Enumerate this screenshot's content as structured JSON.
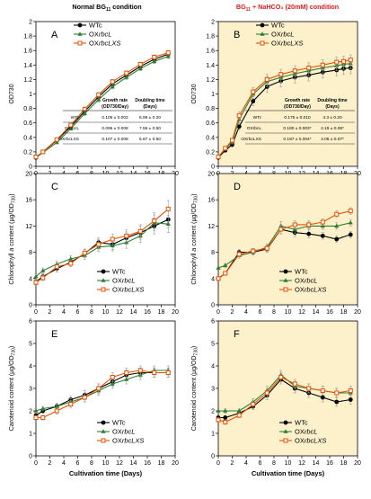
{
  "col_titles": [
    {
      "pre": "Normal BG",
      "sub": "11",
      "post": " condition",
      "color": "#000000"
    },
    {
      "pre": "BG",
      "sub": "11",
      "post": " + NaHCO₃ (20mM) condition",
      "color": "#e41a1c"
    }
  ],
  "x_label": "Cultivation time (Days)",
  "x_ticks": [
    0,
    2,
    4,
    6,
    8,
    10,
    12,
    14,
    16,
    18,
    20
  ],
  "legend_items": [
    {
      "key": "wt",
      "pre": "WTc",
      "ital": "",
      "post": ""
    },
    {
      "key": "ox1",
      "pre": "OX",
      "ital": "rbcL",
      "post": ""
    },
    {
      "key": "ox2",
      "pre": "OX",
      "ital": "rbcLXS",
      "post": ""
    }
  ],
  "colors": {
    "wt": "#000000",
    "ox1": "#2e7d32",
    "ox2": "#e65100",
    "panel_bg_right": "#fdf1cc",
    "title_right": "#e41a1c"
  },
  "row_labels": [
    {
      "pre": "OD730",
      "sub": "",
      "post": ""
    },
    {
      "pre": "Chlorophyll ",
      "ital": "a",
      "post": " content (µg/OD",
      "sub": "730",
      "end": ")"
    },
    {
      "pre": "Carotenoid content (µg/OD",
      "sub": "730",
      "end": ")"
    }
  ],
  "tables": [
    {
      "headers": [
        "Growth rate",
        "(OD730/Day)",
        "Doubling time",
        "(Days)"
      ],
      "rows": [
        [
          "WTc",
          "0.105 ± 0.002",
          "6.96 ± 0.20"
        ],
        [
          "OXrbcL",
          "0.096 ± 0.008",
          "7.56 ± 0.50"
        ],
        [
          "OXrbcLXS",
          "0.107 ± 0.008",
          "6.87 ± 0.50"
        ]
      ]
    },
    {
      "headers": [
        "Growth rate",
        "(OD730/Day)",
        "Doubling time",
        "(Days)"
      ],
      "rows": [
        [
          "WTc",
          "0.175 ± 0.010",
          "4.3 ± 0.20"
        ],
        [
          "OXrbcL",
          "0.180 ± 0.003*",
          "4.18 ± 0.06*"
        ],
        [
          "OXrbcLXS",
          "0.187 ± 0.004*",
          "4.05 ± 0.07*"
        ]
      ]
    }
  ],
  "chart_data": [
    {
      "panel": "A",
      "type": "line",
      "background": "#ffffff",
      "ylabel": "OD730",
      "ylim": [
        0,
        2
      ],
      "yticks": [
        0,
        0.2,
        0.4,
        0.6,
        0.8,
        1,
        1.2,
        1.4,
        1.6,
        1.8,
        2
      ],
      "xlim": [
        0,
        20
      ],
      "legend": "table",
      "series": [
        {
          "name": "WTc",
          "x": [
            0,
            1,
            3,
            5,
            7,
            9,
            11,
            13,
            15,
            17,
            19
          ],
          "y": [
            0.12,
            0.2,
            0.36,
            0.55,
            0.76,
            0.96,
            1.14,
            1.26,
            1.38,
            1.48,
            1.55
          ],
          "err": [
            0.01,
            0.01,
            0.02,
            0.02,
            0.03,
            0.03,
            0.03,
            0.03,
            0.03,
            0.03,
            0.03
          ]
        },
        {
          "name": "OXrbcL",
          "x": [
            0,
            1,
            3,
            5,
            7,
            9,
            11,
            13,
            15,
            17,
            19
          ],
          "y": [
            0.12,
            0.19,
            0.33,
            0.52,
            0.73,
            0.92,
            1.1,
            1.23,
            1.35,
            1.45,
            1.52
          ],
          "err": [
            0.01,
            0.01,
            0.02,
            0.02,
            0.03,
            0.03,
            0.03,
            0.03,
            0.03,
            0.03,
            0.03
          ]
        },
        {
          "name": "OXrbcLXS",
          "x": [
            0,
            1,
            3,
            5,
            7,
            9,
            11,
            13,
            15,
            17,
            19
          ],
          "y": [
            0.13,
            0.2,
            0.37,
            0.57,
            0.79,
            0.99,
            1.17,
            1.29,
            1.41,
            1.51,
            1.57
          ],
          "err": [
            0.01,
            0.01,
            0.02,
            0.02,
            0.03,
            0.03,
            0.03,
            0.03,
            0.03,
            0.03,
            0.03
          ]
        }
      ]
    },
    {
      "panel": "B",
      "type": "line",
      "background": "#fdf1cc",
      "ylabel": "OD730",
      "ylim": [
        0,
        2
      ],
      "yticks": [
        0,
        0.2,
        0.4,
        0.6,
        0.8,
        1,
        1.2,
        1.4,
        1.6,
        1.8,
        2
      ],
      "xlim": [
        0,
        20
      ],
      "legend": "table",
      "series": [
        {
          "name": "WTc",
          "x": [
            0,
            1,
            2,
            3,
            5,
            7,
            9,
            11,
            13,
            15,
            17,
            18,
            19
          ],
          "y": [
            0.12,
            0.22,
            0.3,
            0.55,
            0.9,
            1.1,
            1.18,
            1.23,
            1.26,
            1.3,
            1.33,
            1.35,
            1.36
          ],
          "err": [
            0.01,
            0.02,
            0.03,
            0.05,
            0.06,
            0.08,
            0.08,
            0.08,
            0.08,
            0.08,
            0.08,
            0.08,
            0.08
          ]
        },
        {
          "name": "OXrbcL",
          "x": [
            0,
            1,
            2,
            3,
            5,
            7,
            9,
            11,
            13,
            15,
            17,
            18,
            19
          ],
          "y": [
            0.13,
            0.24,
            0.34,
            0.65,
            1.0,
            1.17,
            1.23,
            1.28,
            1.32,
            1.36,
            1.39,
            1.41,
            1.42
          ],
          "err": [
            0.01,
            0.02,
            0.03,
            0.05,
            0.06,
            0.07,
            0.07,
            0.07,
            0.07,
            0.07,
            0.07,
            0.07,
            0.07
          ]
        },
        {
          "name": "OXrbcLXS",
          "x": [
            0,
            1,
            2,
            3,
            5,
            7,
            9,
            11,
            13,
            15,
            17,
            18,
            19
          ],
          "y": [
            0.13,
            0.25,
            0.36,
            0.7,
            1.03,
            1.2,
            1.27,
            1.32,
            1.36,
            1.4,
            1.44,
            1.45,
            1.47
          ],
          "err": [
            0.01,
            0.02,
            0.03,
            0.05,
            0.06,
            0.07,
            0.07,
            0.07,
            0.07,
            0.07,
            0.07,
            0.07,
            0.07
          ]
        }
      ]
    },
    {
      "panel": "C",
      "type": "line",
      "background": "#ffffff",
      "ylabel": "Chlorophyll a content (µg/OD730)",
      "ylim": [
        0,
        20
      ],
      "yticks": [
        0,
        4,
        8,
        12,
        16,
        20
      ],
      "xlim": [
        0,
        20
      ],
      "legend": "bottom-right",
      "series": [
        {
          "name": "WTc",
          "x": [
            0,
            1,
            3,
            5,
            7,
            9,
            11,
            13,
            15,
            17,
            19
          ],
          "y": [
            3.5,
            4.3,
            5.5,
            6.5,
            7.8,
            9.5,
            9.2,
            10.2,
            11.0,
            12.0,
            13.0
          ],
          "err": [
            0.4,
            0.4,
            0.5,
            0.5,
            0.6,
            0.7,
            0.8,
            0.9,
            1.0,
            1.2,
            1.3
          ]
        },
        {
          "name": "OXrbcL",
          "x": [
            0,
            1,
            3,
            5,
            7,
            9,
            11,
            13,
            15,
            17,
            19
          ],
          "y": [
            4.3,
            5.2,
            6.2,
            7.0,
            7.5,
            8.8,
            9.0,
            9.5,
            10.5,
            12.5,
            12.3
          ],
          "err": [
            0.4,
            0.4,
            0.5,
            0.5,
            0.6,
            0.7,
            0.8,
            0.9,
            1.0,
            1.2,
            1.3
          ]
        },
        {
          "name": "OXrbcLXS",
          "x": [
            0,
            1,
            3,
            5,
            7,
            9,
            11,
            13,
            15,
            17,
            19
          ],
          "y": [
            3.4,
            4.1,
            5.8,
            6.3,
            7.9,
            9.2,
            10.0,
            10.5,
            11.2,
            12.8,
            14.6
          ],
          "err": [
            0.4,
            0.4,
            0.5,
            0.5,
            0.6,
            0.7,
            0.8,
            0.9,
            1.0,
            1.2,
            1.3
          ]
        }
      ]
    },
    {
      "panel": "D",
      "type": "line",
      "background": "#fdf1cc",
      "ylabel": "Chlorophyll a content (µg/OD730)",
      "ylim": [
        0,
        20
      ],
      "yticks": [
        0,
        4,
        8,
        12,
        16,
        20
      ],
      "xlim": [
        0,
        20
      ],
      "legend": "bottom-right",
      "series": [
        {
          "name": "WTc",
          "x": [
            0,
            1,
            3,
            5,
            7,
            9,
            11,
            13,
            15,
            17,
            19
          ],
          "y": [
            4.0,
            4.8,
            8.0,
            8.0,
            8.5,
            11.5,
            11.0,
            10.8,
            10.5,
            10.0,
            10.7
          ],
          "err": [
            0.3,
            0.3,
            0.4,
            0.4,
            0.5,
            0.7,
            0.6,
            0.6,
            0.5,
            0.5,
            0.5
          ]
        },
        {
          "name": "OXrbcL",
          "x": [
            0,
            1,
            3,
            5,
            7,
            9,
            11,
            13,
            15,
            17,
            19
          ],
          "y": [
            5.6,
            6.0,
            7.5,
            8.0,
            8.8,
            12.0,
            11.5,
            12.0,
            12.0,
            12.0,
            12.5
          ],
          "err": [
            0.3,
            0.3,
            0.4,
            0.4,
            0.5,
            0.7,
            0.6,
            0.6,
            0.5,
            0.5,
            0.5
          ]
        },
        {
          "name": "OXrbcLXS",
          "x": [
            0,
            1,
            3,
            5,
            7,
            9,
            11,
            13,
            15,
            17,
            19
          ],
          "y": [
            4.0,
            4.8,
            7.7,
            8.2,
            8.6,
            11.5,
            12.2,
            12.2,
            12.6,
            13.8,
            14.3
          ],
          "err": [
            0.3,
            0.3,
            0.4,
            0.4,
            0.5,
            0.7,
            0.6,
            0.6,
            0.5,
            0.5,
            0.5
          ]
        }
      ]
    },
    {
      "panel": "E",
      "type": "line",
      "background": "#ffffff",
      "ylabel": "Carotenoid content (µg/OD730)",
      "ylim": [
        0,
        6
      ],
      "yticks": [
        0,
        1,
        2,
        3,
        4,
        5,
        6
      ],
      "xlim": [
        0,
        20
      ],
      "legend": "bottom-right",
      "series": [
        {
          "name": "WTc",
          "x": [
            0,
            1,
            3,
            5,
            7,
            9,
            11,
            13,
            15,
            17,
            19
          ],
          "y": [
            1.8,
            2.0,
            2.2,
            2.5,
            2.7,
            3.0,
            3.3,
            3.6,
            3.7,
            3.7,
            3.7
          ],
          "err": [
            0.1,
            0.1,
            0.15,
            0.15,
            0.2,
            0.2,
            0.2,
            0.2,
            0.2,
            0.2,
            0.2
          ]
        },
        {
          "name": "OXrbcL",
          "x": [
            0,
            1,
            3,
            5,
            7,
            9,
            11,
            13,
            15,
            17,
            19
          ],
          "y": [
            2.0,
            2.1,
            2.2,
            2.4,
            2.6,
            2.9,
            3.2,
            3.4,
            3.6,
            3.8,
            3.8
          ],
          "err": [
            0.1,
            0.1,
            0.15,
            0.15,
            0.2,
            0.2,
            0.2,
            0.2,
            0.2,
            0.2,
            0.2
          ]
        },
        {
          "name": "OXrbcLXS",
          "x": [
            0,
            1,
            3,
            5,
            7,
            9,
            11,
            13,
            15,
            17,
            19
          ],
          "y": [
            1.7,
            1.7,
            2.0,
            2.3,
            2.6,
            3.0,
            3.5,
            3.7,
            3.8,
            3.7,
            3.7
          ],
          "err": [
            0.1,
            0.1,
            0.15,
            0.15,
            0.2,
            0.2,
            0.2,
            0.2,
            0.2,
            0.2,
            0.2
          ]
        }
      ]
    },
    {
      "panel": "F",
      "type": "line",
      "background": "#fdf1cc",
      "ylabel": "Carotenoid content (µg/OD730)",
      "ylim": [
        0,
        6
      ],
      "yticks": [
        0,
        1,
        2,
        3,
        4,
        5,
        6
      ],
      "xlim": [
        0,
        20
      ],
      "legend": "bottom-right",
      "series": [
        {
          "name": "WTc",
          "x": [
            0,
            1,
            3,
            5,
            7,
            9,
            11,
            13,
            15,
            17,
            19
          ],
          "y": [
            1.7,
            1.7,
            1.9,
            2.2,
            2.7,
            3.4,
            3.0,
            2.8,
            2.6,
            2.4,
            2.5
          ],
          "err": [
            0.1,
            0.1,
            0.1,
            0.15,
            0.2,
            0.2,
            0.2,
            0.2,
            0.2,
            0.2,
            0.2
          ]
        },
        {
          "name": "OXrbcL",
          "x": [
            0,
            1,
            3,
            5,
            7,
            9,
            11,
            13,
            15,
            17,
            19
          ],
          "y": [
            2.0,
            2.0,
            2.0,
            2.4,
            2.9,
            3.6,
            3.1,
            3.0,
            2.9,
            2.8,
            2.8
          ],
          "err": [
            0.1,
            0.1,
            0.1,
            0.15,
            0.2,
            0.2,
            0.2,
            0.2,
            0.2,
            0.2,
            0.2
          ]
        },
        {
          "name": "OXrbcLXS",
          "x": [
            0,
            1,
            3,
            5,
            7,
            9,
            11,
            13,
            15,
            17,
            19
          ],
          "y": [
            1.6,
            1.5,
            1.8,
            2.3,
            2.8,
            3.5,
            3.2,
            3.0,
            2.9,
            2.8,
            2.9
          ],
          "err": [
            0.1,
            0.1,
            0.1,
            0.15,
            0.2,
            0.2,
            0.2,
            0.2,
            0.2,
            0.2,
            0.2
          ]
        }
      ]
    }
  ]
}
